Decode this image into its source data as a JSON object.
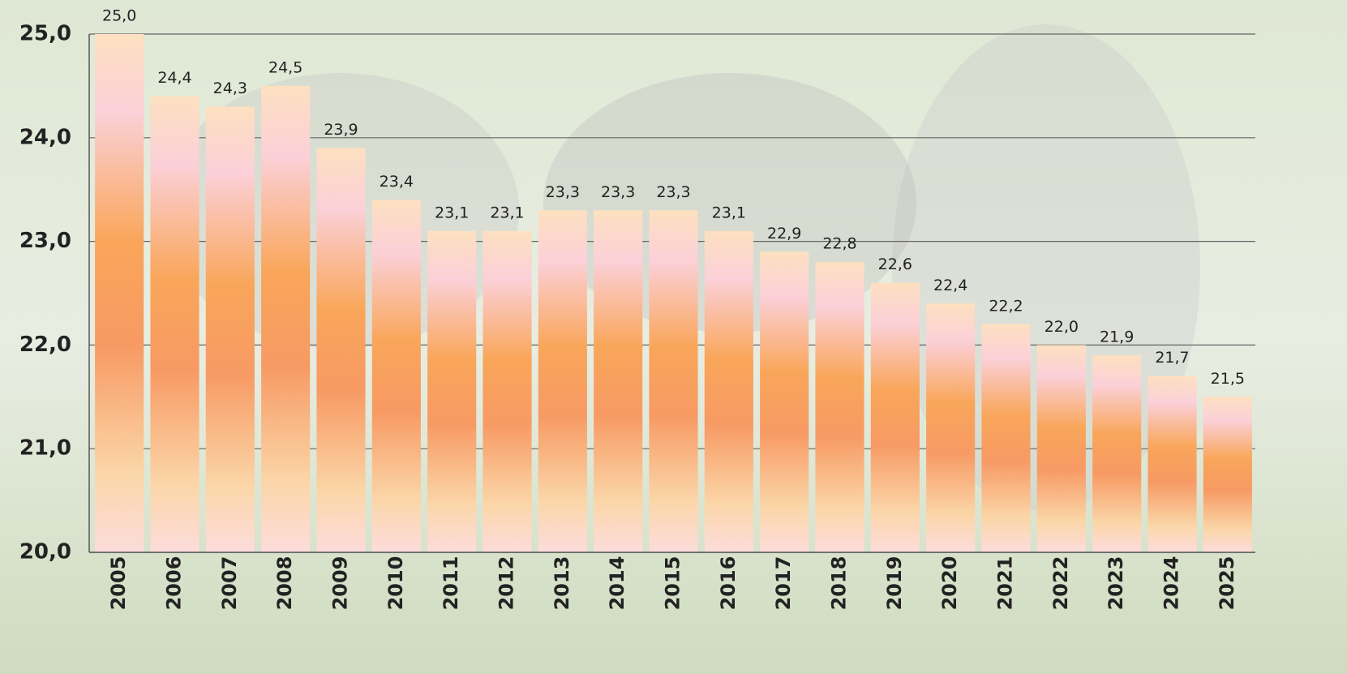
{
  "chart_data": {
    "type": "bar",
    "categories": [
      "2005",
      "2006",
      "2007",
      "2008",
      "2009",
      "2010",
      "2011",
      "2012",
      "2013",
      "2014",
      "2015",
      "2016",
      "2017",
      "2018",
      "2019",
      "2020",
      "2021",
      "2022",
      "2023",
      "2024",
      "2025"
    ],
    "values": [
      25.0,
      24.4,
      24.3,
      24.5,
      23.9,
      23.4,
      23.1,
      23.1,
      23.3,
      23.3,
      23.3,
      23.1,
      22.9,
      22.8,
      22.6,
      22.4,
      22.2,
      22.0,
      21.9,
      21.7,
      21.5
    ],
    "value_labels": [
      "25,0",
      "24,4",
      "24,3",
      "24,5",
      "23,9",
      "23,4",
      "23,1",
      "23,1",
      "23,3",
      "23,3",
      "23,3",
      "23,1",
      "22,9",
      "22,8",
      "22,6",
      "22,4",
      "22,2",
      "22,0",
      "21,9",
      "21,7",
      "21,5"
    ],
    "color": "#f9a65a",
    "ylim": [
      20,
      25
    ],
    "yticks": [
      {
        "value": 20,
        "label": "20,0"
      },
      {
        "value": 21,
        "label": "21,0"
      },
      {
        "value": 22,
        "label": "22,0"
      },
      {
        "value": 23,
        "label": "23,0"
      },
      {
        "value": 24,
        "label": "24,0"
      },
      {
        "value": 25,
        "label": "25,0"
      }
    ],
    "grid": true
  }
}
